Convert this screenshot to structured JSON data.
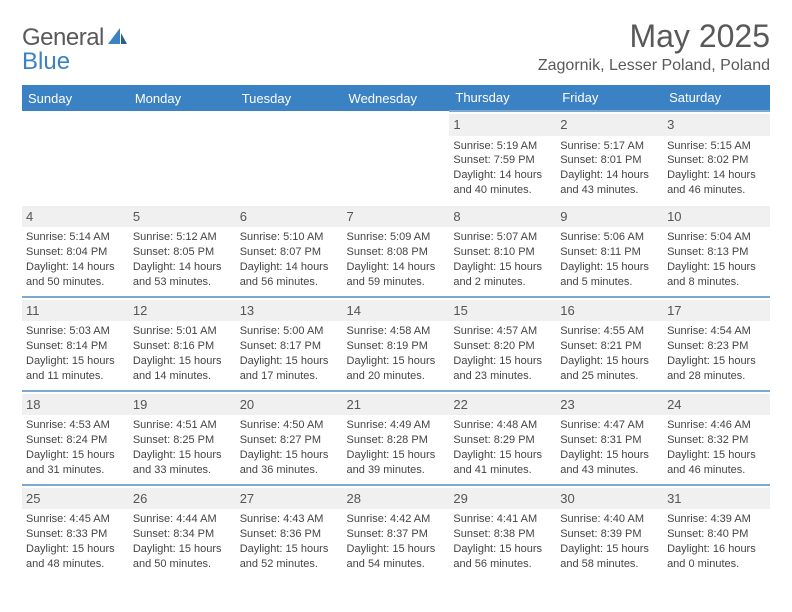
{
  "logo": {
    "word1": "General",
    "word2": "Blue"
  },
  "title": "May 2025",
  "location": "Zagornik, Lesser Poland, Poland",
  "colors": {
    "header_bg": "#3b82c4",
    "header_text": "#ffffff",
    "row_divider": "#7da9cf",
    "daynum_bg": "#f0f0f0",
    "body_text": "#444444",
    "title_text": "#595959",
    "page_bg": "#ffffff"
  },
  "typography": {
    "title_fontsize": 32,
    "location_fontsize": 16,
    "dayheader_fontsize": 13,
    "cell_fontsize": 11
  },
  "day_headers": [
    "Sunday",
    "Monday",
    "Tuesday",
    "Wednesday",
    "Thursday",
    "Friday",
    "Saturday"
  ],
  "weeks": [
    [
      null,
      null,
      null,
      null,
      {
        "n": "1",
        "sunrise": "5:19 AM",
        "sunset": "7:59 PM",
        "daylight": "14 hours and 40 minutes."
      },
      {
        "n": "2",
        "sunrise": "5:17 AM",
        "sunset": "8:01 PM",
        "daylight": "14 hours and 43 minutes."
      },
      {
        "n": "3",
        "sunrise": "5:15 AM",
        "sunset": "8:02 PM",
        "daylight": "14 hours and 46 minutes."
      }
    ],
    [
      {
        "n": "4",
        "sunrise": "5:14 AM",
        "sunset": "8:04 PM",
        "daylight": "14 hours and 50 minutes."
      },
      {
        "n": "5",
        "sunrise": "5:12 AM",
        "sunset": "8:05 PM",
        "daylight": "14 hours and 53 minutes."
      },
      {
        "n": "6",
        "sunrise": "5:10 AM",
        "sunset": "8:07 PM",
        "daylight": "14 hours and 56 minutes."
      },
      {
        "n": "7",
        "sunrise": "5:09 AM",
        "sunset": "8:08 PM",
        "daylight": "14 hours and 59 minutes."
      },
      {
        "n": "8",
        "sunrise": "5:07 AM",
        "sunset": "8:10 PM",
        "daylight": "15 hours and 2 minutes."
      },
      {
        "n": "9",
        "sunrise": "5:06 AM",
        "sunset": "8:11 PM",
        "daylight": "15 hours and 5 minutes."
      },
      {
        "n": "10",
        "sunrise": "5:04 AM",
        "sunset": "8:13 PM",
        "daylight": "15 hours and 8 minutes."
      }
    ],
    [
      {
        "n": "11",
        "sunrise": "5:03 AM",
        "sunset": "8:14 PM",
        "daylight": "15 hours and 11 minutes."
      },
      {
        "n": "12",
        "sunrise": "5:01 AM",
        "sunset": "8:16 PM",
        "daylight": "15 hours and 14 minutes."
      },
      {
        "n": "13",
        "sunrise": "5:00 AM",
        "sunset": "8:17 PM",
        "daylight": "15 hours and 17 minutes."
      },
      {
        "n": "14",
        "sunrise": "4:58 AM",
        "sunset": "8:19 PM",
        "daylight": "15 hours and 20 minutes."
      },
      {
        "n": "15",
        "sunrise": "4:57 AM",
        "sunset": "8:20 PM",
        "daylight": "15 hours and 23 minutes."
      },
      {
        "n": "16",
        "sunrise": "4:55 AM",
        "sunset": "8:21 PM",
        "daylight": "15 hours and 25 minutes."
      },
      {
        "n": "17",
        "sunrise": "4:54 AM",
        "sunset": "8:23 PM",
        "daylight": "15 hours and 28 minutes."
      }
    ],
    [
      {
        "n": "18",
        "sunrise": "4:53 AM",
        "sunset": "8:24 PM",
        "daylight": "15 hours and 31 minutes."
      },
      {
        "n": "19",
        "sunrise": "4:51 AM",
        "sunset": "8:25 PM",
        "daylight": "15 hours and 33 minutes."
      },
      {
        "n": "20",
        "sunrise": "4:50 AM",
        "sunset": "8:27 PM",
        "daylight": "15 hours and 36 minutes."
      },
      {
        "n": "21",
        "sunrise": "4:49 AM",
        "sunset": "8:28 PM",
        "daylight": "15 hours and 39 minutes."
      },
      {
        "n": "22",
        "sunrise": "4:48 AM",
        "sunset": "8:29 PM",
        "daylight": "15 hours and 41 minutes."
      },
      {
        "n": "23",
        "sunrise": "4:47 AM",
        "sunset": "8:31 PM",
        "daylight": "15 hours and 43 minutes."
      },
      {
        "n": "24",
        "sunrise": "4:46 AM",
        "sunset": "8:32 PM",
        "daylight": "15 hours and 46 minutes."
      }
    ],
    [
      {
        "n": "25",
        "sunrise": "4:45 AM",
        "sunset": "8:33 PM",
        "daylight": "15 hours and 48 minutes."
      },
      {
        "n": "26",
        "sunrise": "4:44 AM",
        "sunset": "8:34 PM",
        "daylight": "15 hours and 50 minutes."
      },
      {
        "n": "27",
        "sunrise": "4:43 AM",
        "sunset": "8:36 PM",
        "daylight": "15 hours and 52 minutes."
      },
      {
        "n": "28",
        "sunrise": "4:42 AM",
        "sunset": "8:37 PM",
        "daylight": "15 hours and 54 minutes."
      },
      {
        "n": "29",
        "sunrise": "4:41 AM",
        "sunset": "8:38 PM",
        "daylight": "15 hours and 56 minutes."
      },
      {
        "n": "30",
        "sunrise": "4:40 AM",
        "sunset": "8:39 PM",
        "daylight": "15 hours and 58 minutes."
      },
      {
        "n": "31",
        "sunrise": "4:39 AM",
        "sunset": "8:40 PM",
        "daylight": "16 hours and 0 minutes."
      }
    ]
  ],
  "labels": {
    "sunrise": "Sunrise:",
    "sunset": "Sunset:",
    "daylight": "Daylight:"
  }
}
